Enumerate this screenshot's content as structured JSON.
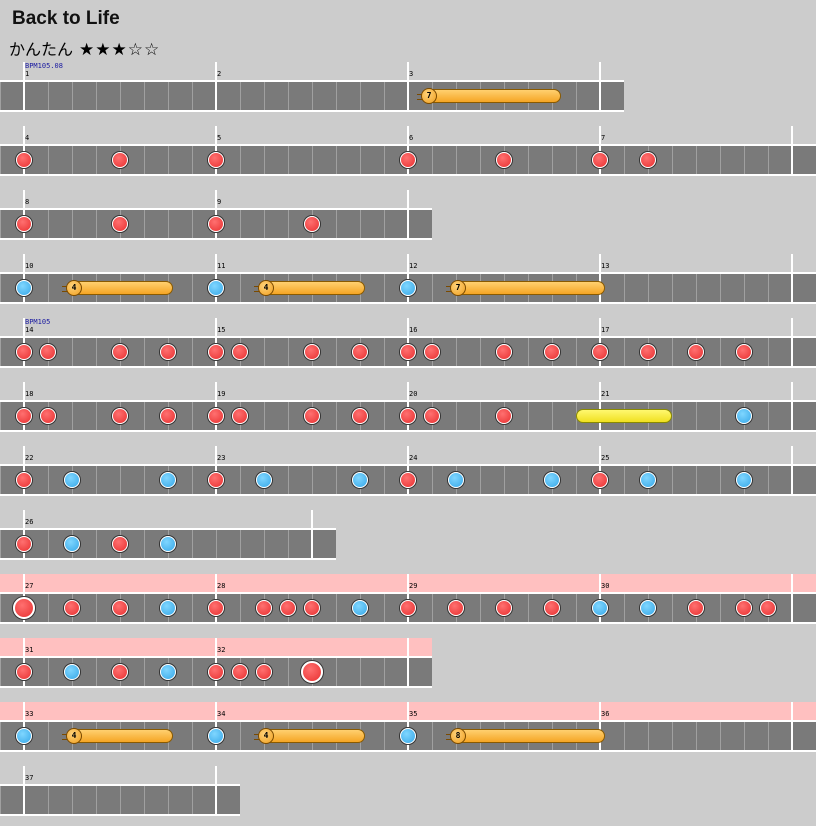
{
  "song": {
    "title": "Back to Life"
  },
  "difficulty": {
    "name": "かんたん",
    "stars_filled": 3,
    "stars_total": 5,
    "stars_text": "★★★☆☆"
  },
  "colors": {
    "background": "#cccccc",
    "lane": "#7a7a7a",
    "gogo": "#ffc0c0",
    "don": "#e83030",
    "ka": "#37a8e8",
    "drumroll": "#f5a524",
    "big_drumroll": "#f0e020"
  },
  "rows": [
    {
      "gogo": false,
      "beats": 13,
      "measures": [
        {
          "number": "1",
          "bpm": "BPM105.08"
        },
        {
          "number": "2"
        },
        {
          "number": "3"
        }
      ],
      "notes": [],
      "rolls": [
        {
          "type": "balloon",
          "count": "7",
          "start": 8.4,
          "end": 11.2
        }
      ]
    },
    {
      "gogo": false,
      "beats": 17,
      "measures": [
        {
          "number": "4"
        },
        {
          "number": "5"
        },
        {
          "number": "6"
        },
        {
          "number": "7"
        }
      ],
      "notes": [
        {
          "t": 0,
          "type": "don"
        },
        {
          "t": 2,
          "type": "don"
        },
        {
          "t": 4,
          "type": "don"
        },
        {
          "t": 8,
          "type": "don"
        },
        {
          "t": 10,
          "type": "don"
        },
        {
          "t": 12,
          "type": "don"
        },
        {
          "t": 13,
          "type": "don"
        }
      ],
      "rolls": []
    },
    {
      "gogo": false,
      "beats": 9,
      "measures": [
        {
          "number": "8"
        },
        {
          "number": "9"
        }
      ],
      "notes": [
        {
          "t": 0,
          "type": "don"
        },
        {
          "t": 2,
          "type": "don"
        },
        {
          "t": 4,
          "type": "don"
        },
        {
          "t": 6,
          "type": "don"
        }
      ],
      "rolls": []
    },
    {
      "gogo": false,
      "beats": 17,
      "measures": [
        {
          "number": "10"
        },
        {
          "number": "11"
        },
        {
          "number": "12"
        },
        {
          "number": "13"
        }
      ],
      "notes": [
        {
          "t": 0,
          "type": "ka"
        },
        {
          "t": 4,
          "type": "ka"
        },
        {
          "t": 8,
          "type": "ka"
        }
      ],
      "rolls": [
        {
          "type": "balloon",
          "count": "4",
          "start": 1.0,
          "end": 3.1
        },
        {
          "type": "balloon",
          "count": "4",
          "start": 5.0,
          "end": 7.1
        },
        {
          "type": "balloon",
          "count": "7",
          "start": 9.0,
          "end": 12.1
        }
      ]
    },
    {
      "gogo": false,
      "beats": 17,
      "measures": [
        {
          "number": "14",
          "bpm": "BPM105"
        },
        {
          "number": "15"
        },
        {
          "number": "16"
        },
        {
          "number": "17"
        }
      ],
      "notes": [
        {
          "t": 0,
          "type": "don"
        },
        {
          "t": 0.5,
          "type": "don"
        },
        {
          "t": 2,
          "type": "don"
        },
        {
          "t": 3,
          "type": "don"
        },
        {
          "t": 4,
          "type": "don"
        },
        {
          "t": 4.5,
          "type": "don"
        },
        {
          "t": 6,
          "type": "don"
        },
        {
          "t": 7,
          "type": "don"
        },
        {
          "t": 8,
          "type": "don"
        },
        {
          "t": 8.5,
          "type": "don"
        },
        {
          "t": 10,
          "type": "don"
        },
        {
          "t": 11,
          "type": "don"
        },
        {
          "t": 12,
          "type": "don"
        },
        {
          "t": 13,
          "type": "don"
        },
        {
          "t": 14,
          "type": "don"
        },
        {
          "t": 15,
          "type": "don"
        }
      ],
      "rolls": []
    },
    {
      "gogo": false,
      "beats": 17,
      "measures": [
        {
          "number": "18"
        },
        {
          "number": "19"
        },
        {
          "number": "20"
        },
        {
          "number": "21"
        }
      ],
      "notes": [
        {
          "t": 0,
          "type": "don"
        },
        {
          "t": 0.5,
          "type": "don"
        },
        {
          "t": 2,
          "type": "don"
        },
        {
          "t": 3,
          "type": "don"
        },
        {
          "t": 4,
          "type": "don"
        },
        {
          "t": 4.5,
          "type": "don"
        },
        {
          "t": 6,
          "type": "don"
        },
        {
          "t": 7,
          "type": "don"
        },
        {
          "t": 8,
          "type": "don"
        },
        {
          "t": 8.5,
          "type": "don"
        },
        {
          "t": 10,
          "type": "don"
        },
        {
          "t": 15,
          "type": "ka"
        }
      ],
      "rolls": [
        {
          "type": "drumroll-yellow",
          "start": 11.5,
          "end": 13.5
        }
      ]
    },
    {
      "gogo": false,
      "beats": 17,
      "measures": [
        {
          "number": "22"
        },
        {
          "number": "23"
        },
        {
          "number": "24"
        },
        {
          "number": "25"
        }
      ],
      "notes": [
        {
          "t": 0,
          "type": "don"
        },
        {
          "t": 1,
          "type": "ka"
        },
        {
          "t": 3,
          "type": "ka"
        },
        {
          "t": 4,
          "type": "don"
        },
        {
          "t": 5,
          "type": "ka"
        },
        {
          "t": 7,
          "type": "ka"
        },
        {
          "t": 8,
          "type": "don"
        },
        {
          "t": 9,
          "type": "ka"
        },
        {
          "t": 11,
          "type": "ka"
        },
        {
          "t": 12,
          "type": "don"
        },
        {
          "t": 13,
          "type": "ka"
        },
        {
          "t": 15,
          "type": "ka"
        }
      ],
      "rolls": []
    },
    {
      "gogo": false,
      "beats": 7,
      "measures": [
        {
          "number": "26"
        }
      ],
      "notes": [
        {
          "t": 0,
          "type": "don"
        },
        {
          "t": 1,
          "type": "ka"
        },
        {
          "t": 2,
          "type": "don"
        },
        {
          "t": 3,
          "type": "ka"
        }
      ],
      "rolls": []
    },
    {
      "gogo": true,
      "beats": 17,
      "measures": [
        {
          "number": "27"
        },
        {
          "number": "28"
        },
        {
          "number": "29"
        },
        {
          "number": "30"
        }
      ],
      "notes": [
        {
          "t": 0,
          "type": "don",
          "big": true
        },
        {
          "t": 1,
          "type": "don"
        },
        {
          "t": 2,
          "type": "don"
        },
        {
          "t": 3,
          "type": "ka"
        },
        {
          "t": 4,
          "type": "don"
        },
        {
          "t": 5,
          "type": "don"
        },
        {
          "t": 5.5,
          "type": "don"
        },
        {
          "t": 6,
          "type": "don"
        },
        {
          "t": 7,
          "type": "ka"
        },
        {
          "t": 8,
          "type": "don"
        },
        {
          "t": 9,
          "type": "don"
        },
        {
          "t": 10,
          "type": "don"
        },
        {
          "t": 11,
          "type": "don"
        },
        {
          "t": 12,
          "type": "ka"
        },
        {
          "t": 13,
          "type": "ka"
        },
        {
          "t": 14,
          "type": "don"
        },
        {
          "t": 15,
          "type": "don"
        },
        {
          "t": 15.5,
          "type": "don"
        }
      ],
      "rolls": []
    },
    {
      "gogo": true,
      "beats": 9,
      "measures": [
        {
          "number": "31"
        },
        {
          "number": "32"
        }
      ],
      "notes": [
        {
          "t": 0,
          "type": "don"
        },
        {
          "t": 1,
          "type": "ka"
        },
        {
          "t": 2,
          "type": "don"
        },
        {
          "t": 3,
          "type": "ka"
        },
        {
          "t": 4,
          "type": "don"
        },
        {
          "t": 4.5,
          "type": "don"
        },
        {
          "t": 5,
          "type": "don"
        },
        {
          "t": 6,
          "type": "don",
          "big": true
        }
      ],
      "rolls": []
    },
    {
      "gogo": true,
      "beats": 17,
      "measures": [
        {
          "number": "33"
        },
        {
          "number": "34"
        },
        {
          "number": "35"
        },
        {
          "number": "36"
        }
      ],
      "notes": [
        {
          "t": 0,
          "type": "ka"
        },
        {
          "t": 4,
          "type": "ka"
        },
        {
          "t": 8,
          "type": "ka"
        }
      ],
      "rolls": [
        {
          "type": "balloon",
          "count": "4",
          "start": 1.0,
          "end": 3.1
        },
        {
          "type": "balloon",
          "count": "4",
          "start": 5.0,
          "end": 7.1
        },
        {
          "type": "balloon",
          "count": "8",
          "start": 9.0,
          "end": 12.1
        }
      ]
    },
    {
      "gogo": false,
      "beats": 5,
      "measures": [
        {
          "number": "37"
        }
      ],
      "notes": [],
      "rolls": []
    }
  ]
}
